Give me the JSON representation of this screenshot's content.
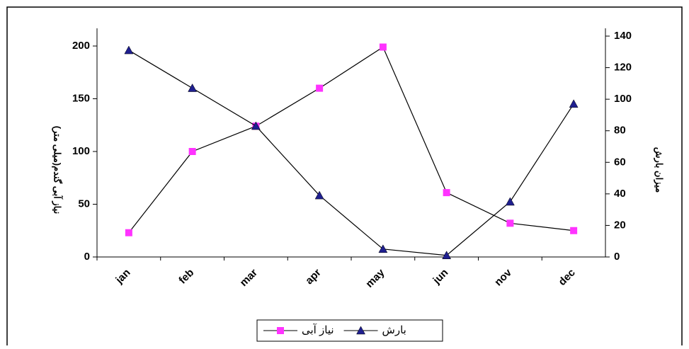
{
  "chart_data": {
    "type": "line",
    "categories": [
      "jan",
      "feb",
      "mar",
      "apr",
      "may",
      "jun",
      "nov",
      "dec"
    ],
    "y_label": "نیاز آبی گندم(میلی متر)",
    "y2_label": "میزان بارش",
    "series": [
      {
        "name": "نیاز آبی",
        "color": "#ff33ff",
        "marker": "square",
        "values": [
          23,
          100,
          124,
          160,
          199,
          61,
          32,
          25
        ]
      },
      {
        "name": "بارش",
        "color": "#1f1f8f",
        "marker": "triangle",
        "axis": "y2",
        "values": [
          131,
          107,
          83,
          39,
          5,
          1,
          35,
          97
        ]
      }
    ],
    "ylim": [
      0,
      200
    ],
    "yticks": [
      0,
      50,
      100,
      150,
      200
    ],
    "y2lim": [
      0,
      140
    ],
    "y2ticks": [
      0,
      20,
      40,
      60,
      80,
      100,
      120,
      140
    ],
    "legend": "bottom"
  }
}
